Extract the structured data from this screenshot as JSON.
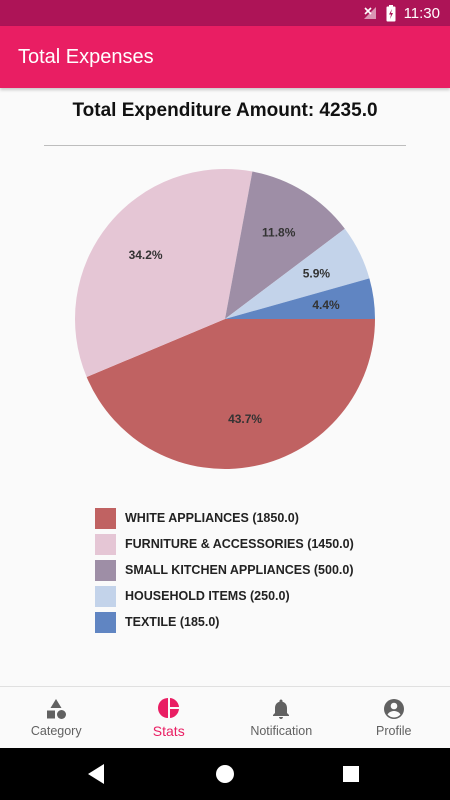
{
  "status_bar": {
    "time": "11:30"
  },
  "app_bar": {
    "title": "Total Expenses"
  },
  "summary": {
    "label": "Total Expenditure Amount: 4235.0"
  },
  "chart_data": {
    "type": "pie",
    "title": "",
    "slices": [
      {
        "name": "WHITE APPLIANCES",
        "value": 1850.0,
        "percent": 43.7,
        "percent_label": "43.7%",
        "legend": "WHITE APPLIANCES (1850.0)",
        "color": "#c06262"
      },
      {
        "name": "FURNITURE & ACCESSORIES",
        "value": 1450.0,
        "percent": 34.2,
        "percent_label": "34.2%",
        "legend": "FURNITURE & ACCESSORIES (1450.0)",
        "color": "#e5c6d5"
      },
      {
        "name": "SMALL KITCHEN APPLIANCES",
        "value": 500.0,
        "percent": 11.8,
        "percent_label": "11.8%",
        "legend": "SMALL KITCHEN APPLIANCES (500.0)",
        "color": "#9e8ea6"
      },
      {
        "name": "HOUSEHOLD ITEMS",
        "value": 250.0,
        "percent": 5.9,
        "percent_label": "5.9%",
        "legend": "HOUSEHOLD ITEMS (250.0)",
        "color": "#c3d3ea"
      },
      {
        "name": "TEXTILE",
        "value": 185.0,
        "percent": 4.4,
        "percent_label": "4.4%",
        "legend": "TEXTILE (185.0)",
        "color": "#6085c2"
      }
    ]
  },
  "bottom_nav": {
    "items": [
      {
        "label": "Category",
        "icon": "category-icon",
        "active": false
      },
      {
        "label": "Stats",
        "icon": "pie-chart-icon",
        "active": true
      },
      {
        "label": "Notification",
        "icon": "bell-icon",
        "active": false
      },
      {
        "label": "Profile",
        "icon": "account-circle-icon",
        "active": false
      }
    ]
  },
  "colors": {
    "status_bar": "#ad1457",
    "app_bar": "#e91e63",
    "accent": "#e91e63"
  }
}
